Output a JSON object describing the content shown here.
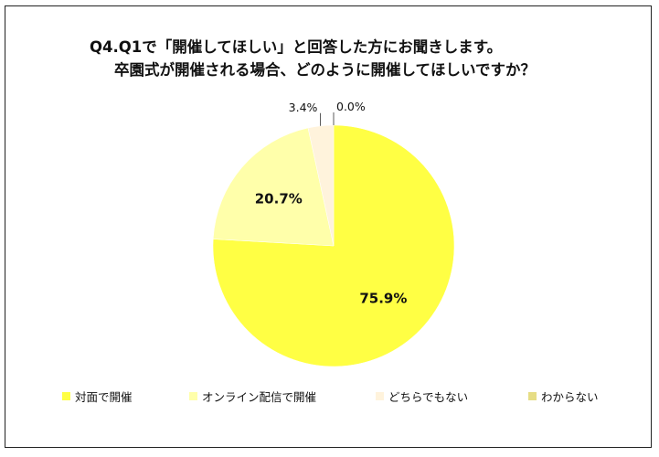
{
  "chart_data": {
    "type": "pie",
    "title_line1": "Q4.Q1で「開催してほしい」と回答した方にお聞きします。",
    "title_line2": "卒園式が開催される場合、どのように開催してほしいですか？",
    "categories": [
      "対面で開催",
      "オンライン配信で開催",
      "どちらでもない",
      "わからない"
    ],
    "values": [
      75.9,
      20.7,
      3.4,
      0.0
    ],
    "labels": [
      "75.9%",
      "20.7%",
      "3.4%",
      "0.0%"
    ],
    "colors": [
      "#FFFF44",
      "#FFFFAA",
      "#FFF3DC",
      "#E6DD85"
    ],
    "legend_position": "bottom",
    "start": "12 o'clock",
    "direction": "clockwise"
  }
}
